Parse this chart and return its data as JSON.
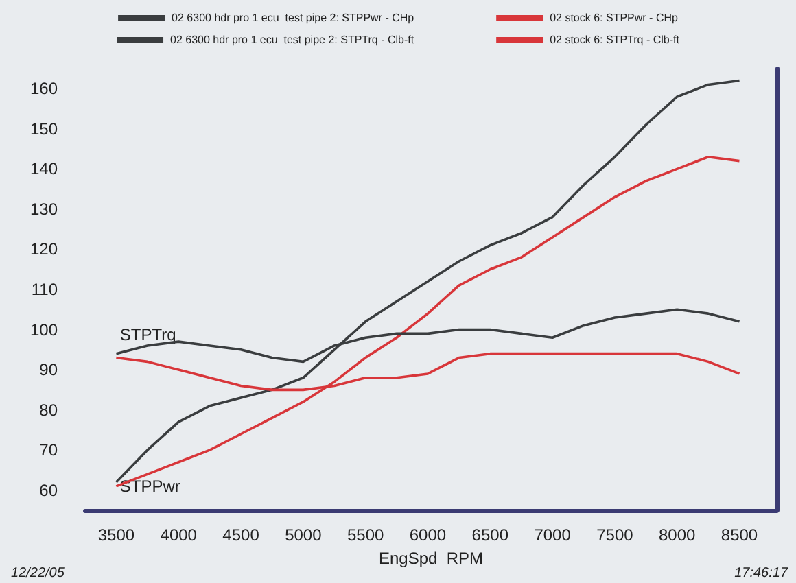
{
  "chart_data": {
    "type": "line",
    "xlabel": "EngSpd  RPM",
    "x": [
      3500,
      3750,
      4000,
      4250,
      4500,
      4750,
      5000,
      5250,
      5500,
      5750,
      6000,
      6250,
      6500,
      6750,
      7000,
      7250,
      7500,
      7750,
      8000,
      8250,
      8500
    ],
    "series": [
      {
        "name": "02 6300 hdr pro 1 ecu  test pipe 2: STPPwr - CHp",
        "color": "#3a3d3f",
        "values": [
          62,
          70,
          77,
          81,
          83,
          85,
          88,
          95,
          102,
          107,
          112,
          117,
          121,
          124,
          128,
          136,
          143,
          151,
          158,
          161,
          162
        ]
      },
      {
        "name": "02 stock 6: STPPwr - CHp",
        "color": "#d8363a",
        "values": [
          61,
          64,
          67,
          70,
          74,
          78,
          82,
          87,
          93,
          98,
          104,
          111,
          115,
          118,
          123,
          128,
          133,
          137,
          140,
          143,
          142
        ]
      },
      {
        "name": "02 6300 hdr pro 1 ecu  test pipe 2: STPTrq - Clb-ft",
        "color": "#3a3d3f",
        "values": [
          94,
          96,
          97,
          96,
          95,
          93,
          92,
          96,
          98,
          99,
          99,
          100,
          100,
          99,
          98,
          101,
          103,
          104,
          105,
          104,
          102
        ]
      },
      {
        "name": "02 stock 6: STPTrq - Clb-ft",
        "color": "#d8363a",
        "values": [
          93,
          92,
          90,
          88,
          86,
          85,
          85,
          86,
          88,
          88,
          89,
          93,
          94,
          94,
          94,
          94,
          94,
          94,
          94,
          92,
          89
        ]
      }
    ],
    "xlim": [
      3250,
      8800
    ],
    "xticks": [
      3500,
      4000,
      4500,
      5000,
      5500,
      6000,
      6500,
      7000,
      7500,
      8000,
      8500
    ],
    "ylim": [
      55,
      165
    ],
    "yticks": [
      60,
      70,
      80,
      90,
      100,
      110,
      120,
      130,
      140,
      150,
      160
    ],
    "grid": false,
    "legend": "top",
    "marker": "none",
    "line_style": "solid",
    "annotations": [
      {
        "text": "STPTrq",
        "x": 3750,
        "y": 96
      },
      {
        "text": "STPPwr",
        "x": 3750,
        "y": 64
      },
      "12/22/05",
      "17:46:17"
    ]
  }
}
